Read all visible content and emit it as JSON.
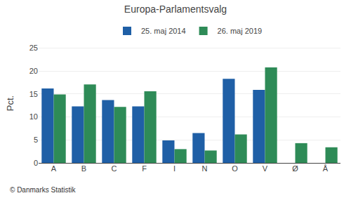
{
  "chart_data": {
    "type": "bar",
    "title": "Europa-Parlamentsvalg",
    "categories": [
      "A",
      "B",
      "C",
      "F",
      "I",
      "N",
      "O",
      "V",
      "Ø",
      "Å"
    ],
    "series": [
      {
        "name": "25. maj 2014",
        "color": "#1f5fa6",
        "values": [
          16.2,
          12.3,
          13.7,
          12.3,
          4.9,
          6.5,
          18.3,
          15.9,
          0.0,
          0.0
        ]
      },
      {
        "name": "26. maj 2019",
        "color": "#2e8b57",
        "values": [
          14.9,
          17.1,
          12.2,
          15.6,
          3.0,
          2.7,
          6.2,
          20.8,
          4.3,
          3.4
        ]
      }
    ],
    "ylabel": "Pct.",
    "ylim": [
      0,
      26
    ],
    "yticks": [
      0,
      5,
      10,
      15,
      20,
      25
    ],
    "grid": true,
    "legend": "top",
    "annotations": [
      "© Danmarks Statistik"
    ]
  }
}
